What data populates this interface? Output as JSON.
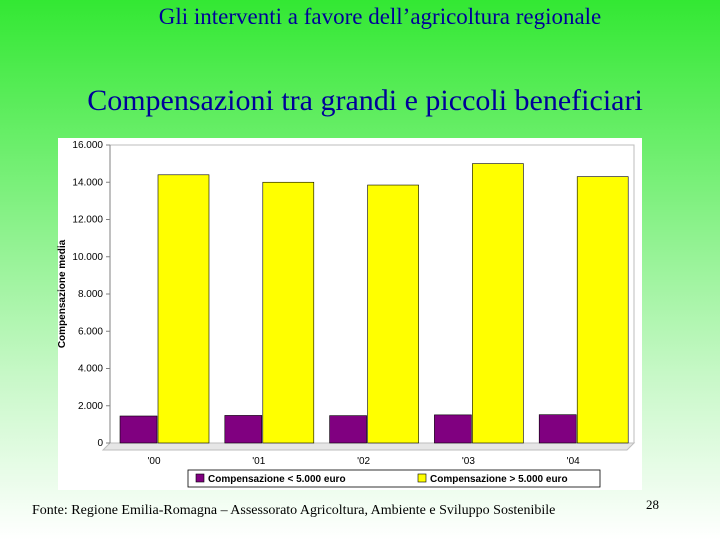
{
  "slide": {
    "header_title": "Gli interventi a favore dell’agricoltura regionale",
    "source": "Fonte: Regione Emilia-Romagna – Assessorato Agricoltura, Ambiente e Sviluppo Sostenibile",
    "page_number": "28"
  },
  "chart_data": {
    "type": "bar",
    "title": "Compensazioni tra grandi e piccoli beneficiari",
    "xlabel": "",
    "ylabel": "Compensazione media",
    "categories": [
      "'00",
      "'01",
      "'02",
      "'03",
      "'04"
    ],
    "ylim": [
      0,
      16000
    ],
    "yticks": [
      0,
      2000,
      4000,
      6000,
      8000,
      10000,
      12000,
      14000,
      16000
    ],
    "ytick_labels": [
      "0",
      "2.000",
      "4.000",
      "6.000",
      "8.000",
      "10.000",
      "12.000",
      "14.000",
      "16.000"
    ],
    "grid": false,
    "legend": "bottom",
    "series": [
      {
        "name": "Compensazione < 5.000 euro",
        "color": "#800080",
        "values": [
          1450,
          1480,
          1470,
          1510,
          1520
        ]
      },
      {
        "name": "Compensazione > 5.000 euro",
        "color": "#ffff00",
        "values": [
          14400,
          14000,
          13850,
          15000,
          14300
        ]
      }
    ]
  }
}
